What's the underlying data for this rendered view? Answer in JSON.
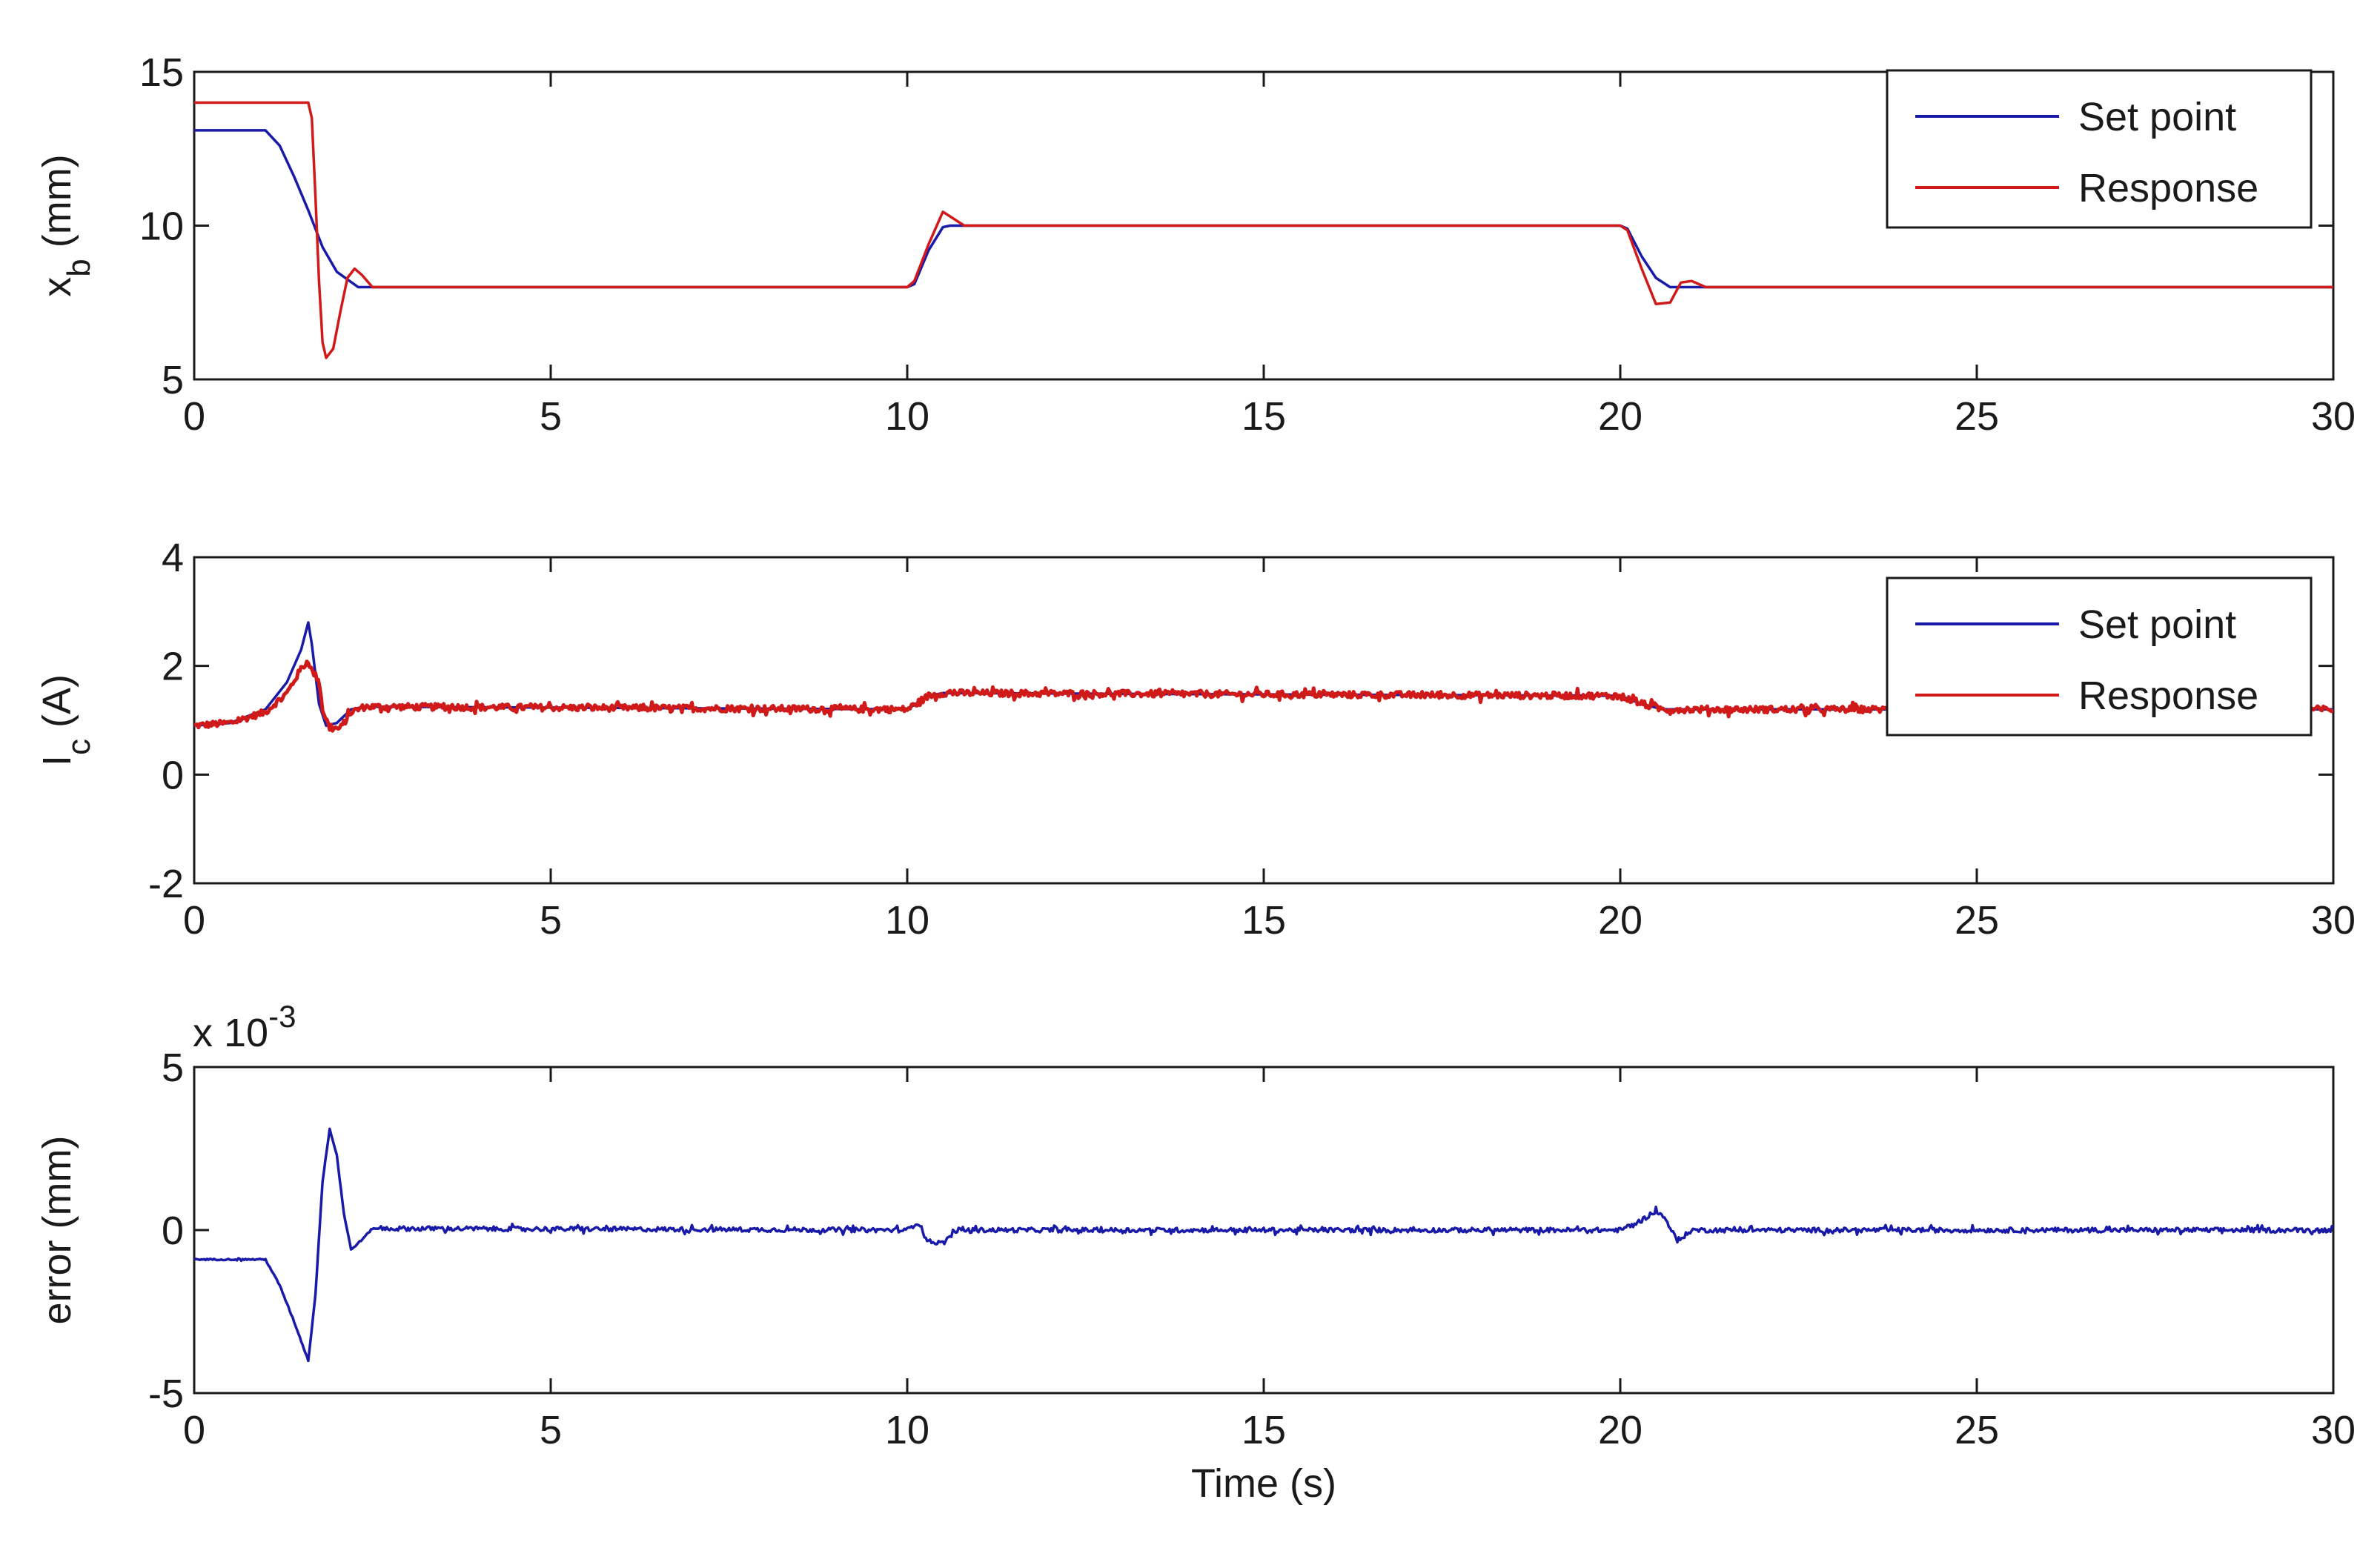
{
  "chart_data": [
    {
      "type": "line",
      "ylabel_main": "x",
      "ylabel_sub": "b",
      "ylabel_rest": " (mm)",
      "xlim": [
        0,
        30
      ],
      "ylim": [
        5,
        15
      ],
      "xticks": [
        "0",
        "5",
        "10",
        "15",
        "20",
        "25",
        "30"
      ],
      "yticks": [
        "5",
        "10",
        "15"
      ],
      "legend": {
        "position": "top-right",
        "entries": [
          "Set point",
          "Response"
        ]
      },
      "series": [
        {
          "name": "Set point",
          "color": "#1a1aa8",
          "points": [
            [
              0,
              13.1
            ],
            [
              1.0,
              13.1
            ],
            [
              1.2,
              12.6
            ],
            [
              1.4,
              11.6
            ],
            [
              1.6,
              10.5
            ],
            [
              1.8,
              9.3
            ],
            [
              2.0,
              8.5
            ],
            [
              2.3,
              8.0
            ],
            [
              10.0,
              8.0
            ],
            [
              10.1,
              8.1
            ],
            [
              10.3,
              9.2
            ],
            [
              10.5,
              9.95
            ],
            [
              10.6,
              10.0
            ],
            [
              20.0,
              10.0
            ],
            [
              20.1,
              9.9
            ],
            [
              20.3,
              9.0
            ],
            [
              20.5,
              8.3
            ],
            [
              20.7,
              8.0
            ],
            [
              30,
              8.0
            ]
          ]
        },
        {
          "name": "Response",
          "color": "#d01a1a",
          "points": [
            [
              0,
              14.0
            ],
            [
              1.6,
              14.0
            ],
            [
              1.65,
              13.5
            ],
            [
              1.7,
              11.0
            ],
            [
              1.75,
              8.2
            ],
            [
              1.8,
              6.2
            ],
            [
              1.85,
              5.7
            ],
            [
              1.95,
              6.0
            ],
            [
              2.05,
              7.2
            ],
            [
              2.15,
              8.3
            ],
            [
              2.25,
              8.6
            ],
            [
              2.35,
              8.4
            ],
            [
              2.5,
              8.0
            ],
            [
              10.0,
              8.0
            ],
            [
              10.1,
              8.2
            ],
            [
              10.3,
              9.4
            ],
            [
              10.5,
              10.45
            ],
            [
              10.6,
              10.3
            ],
            [
              10.8,
              10.0
            ],
            [
              20.0,
              10.0
            ],
            [
              20.1,
              9.85
            ],
            [
              20.3,
              8.6
            ],
            [
              20.5,
              7.45
            ],
            [
              20.7,
              7.5
            ],
            [
              20.85,
              8.15
            ],
            [
              21.0,
              8.2
            ],
            [
              21.2,
              8.0
            ],
            [
              30,
              8.0
            ]
          ]
        }
      ]
    },
    {
      "type": "line",
      "ylabel_main": "I",
      "ylabel_sub": "c",
      "ylabel_rest": " (A)",
      "xlim": [
        0,
        30
      ],
      "ylim": [
        -2,
        4
      ],
      "xticks": [
        "0",
        "5",
        "10",
        "15",
        "20",
        "25",
        "30"
      ],
      "yticks": [
        "-2",
        "0",
        "2",
        "4"
      ],
      "legend": {
        "position": "top-right",
        "entries": [
          "Set point",
          "Response"
        ]
      },
      "series": [
        {
          "name": "Set point",
          "color": "#1a1aa8",
          "points": [
            [
              0,
              0.9
            ],
            [
              0.5,
              0.95
            ],
            [
              1.0,
              1.2
            ],
            [
              1.3,
              1.7
            ],
            [
              1.5,
              2.3
            ],
            [
              1.6,
              2.8
            ],
            [
              1.65,
              2.4
            ],
            [
              1.75,
              1.3
            ],
            [
              1.85,
              0.9
            ],
            [
              2.0,
              0.95
            ],
            [
              2.2,
              1.2
            ],
            [
              2.4,
              1.25
            ],
            [
              10.0,
              1.2
            ],
            [
              10.3,
              1.45
            ],
            [
              10.5,
              1.5
            ],
            [
              20.0,
              1.45
            ],
            [
              20.3,
              1.3
            ],
            [
              20.6,
              1.2
            ],
            [
              30,
              1.2
            ]
          ]
        },
        {
          "name": "Response",
          "color": "#d01a1a",
          "points": [
            [
              0,
              0.9
            ],
            [
              0.5,
              0.95
            ],
            [
              1.0,
              1.15
            ],
            [
              1.3,
              1.5
            ],
            [
              1.5,
              1.95
            ],
            [
              1.6,
              2.1
            ],
            [
              1.65,
              1.9
            ],
            [
              1.75,
              1.75
            ],
            [
              1.8,
              1.2
            ],
            [
              1.9,
              0.85
            ],
            [
              2.05,
              0.85
            ],
            [
              2.2,
              1.15
            ],
            [
              2.4,
              1.25
            ],
            [
              10.0,
              1.2
            ],
            [
              10.3,
              1.45
            ],
            [
              10.5,
              1.5
            ],
            [
              20.0,
              1.45
            ],
            [
              20.3,
              1.3
            ],
            [
              20.6,
              1.2
            ],
            [
              30,
              1.2
            ]
          ],
          "noise_amplitude": 0.12
        }
      ]
    },
    {
      "type": "line",
      "ylabel": "error (mm)",
      "xlabel": "Time (s)",
      "exponent_base": "x 10",
      "exponent_power": "-3",
      "xlim": [
        0,
        30
      ],
      "ylim": [
        -5,
        5
      ],
      "xticks": [
        "0",
        "5",
        "10",
        "15",
        "20",
        "25",
        "30"
      ],
      "yticks": [
        "-5",
        "0",
        "5"
      ],
      "series": [
        {
          "color": "#1a1aa8",
          "points": [
            [
              0,
              -0.9
            ],
            [
              1.0,
              -0.9
            ],
            [
              1.2,
              -1.7
            ],
            [
              1.4,
              -2.8
            ],
            [
              1.6,
              -4.0
            ],
            [
              1.7,
              -2.0
            ],
            [
              1.8,
              1.5
            ],
            [
              1.9,
              3.1
            ],
            [
              2.0,
              2.3
            ],
            [
              2.1,
              0.5
            ],
            [
              2.2,
              -0.6
            ],
            [
              2.35,
              -0.3
            ],
            [
              2.5,
              0.05
            ],
            [
              10.0,
              0.0
            ],
            [
              10.15,
              0.25
            ],
            [
              10.3,
              -0.35
            ],
            [
              10.5,
              -0.4
            ],
            [
              10.7,
              0.0
            ],
            [
              20.0,
              0.0
            ],
            [
              20.3,
              0.3
            ],
            [
              20.5,
              0.6
            ],
            [
              20.65,
              0.3
            ],
            [
              20.8,
              -0.35
            ],
            [
              21.0,
              0.0
            ],
            [
              30,
              0.0
            ]
          ],
          "noise_amplitude": 0.14
        }
      ]
    }
  ]
}
